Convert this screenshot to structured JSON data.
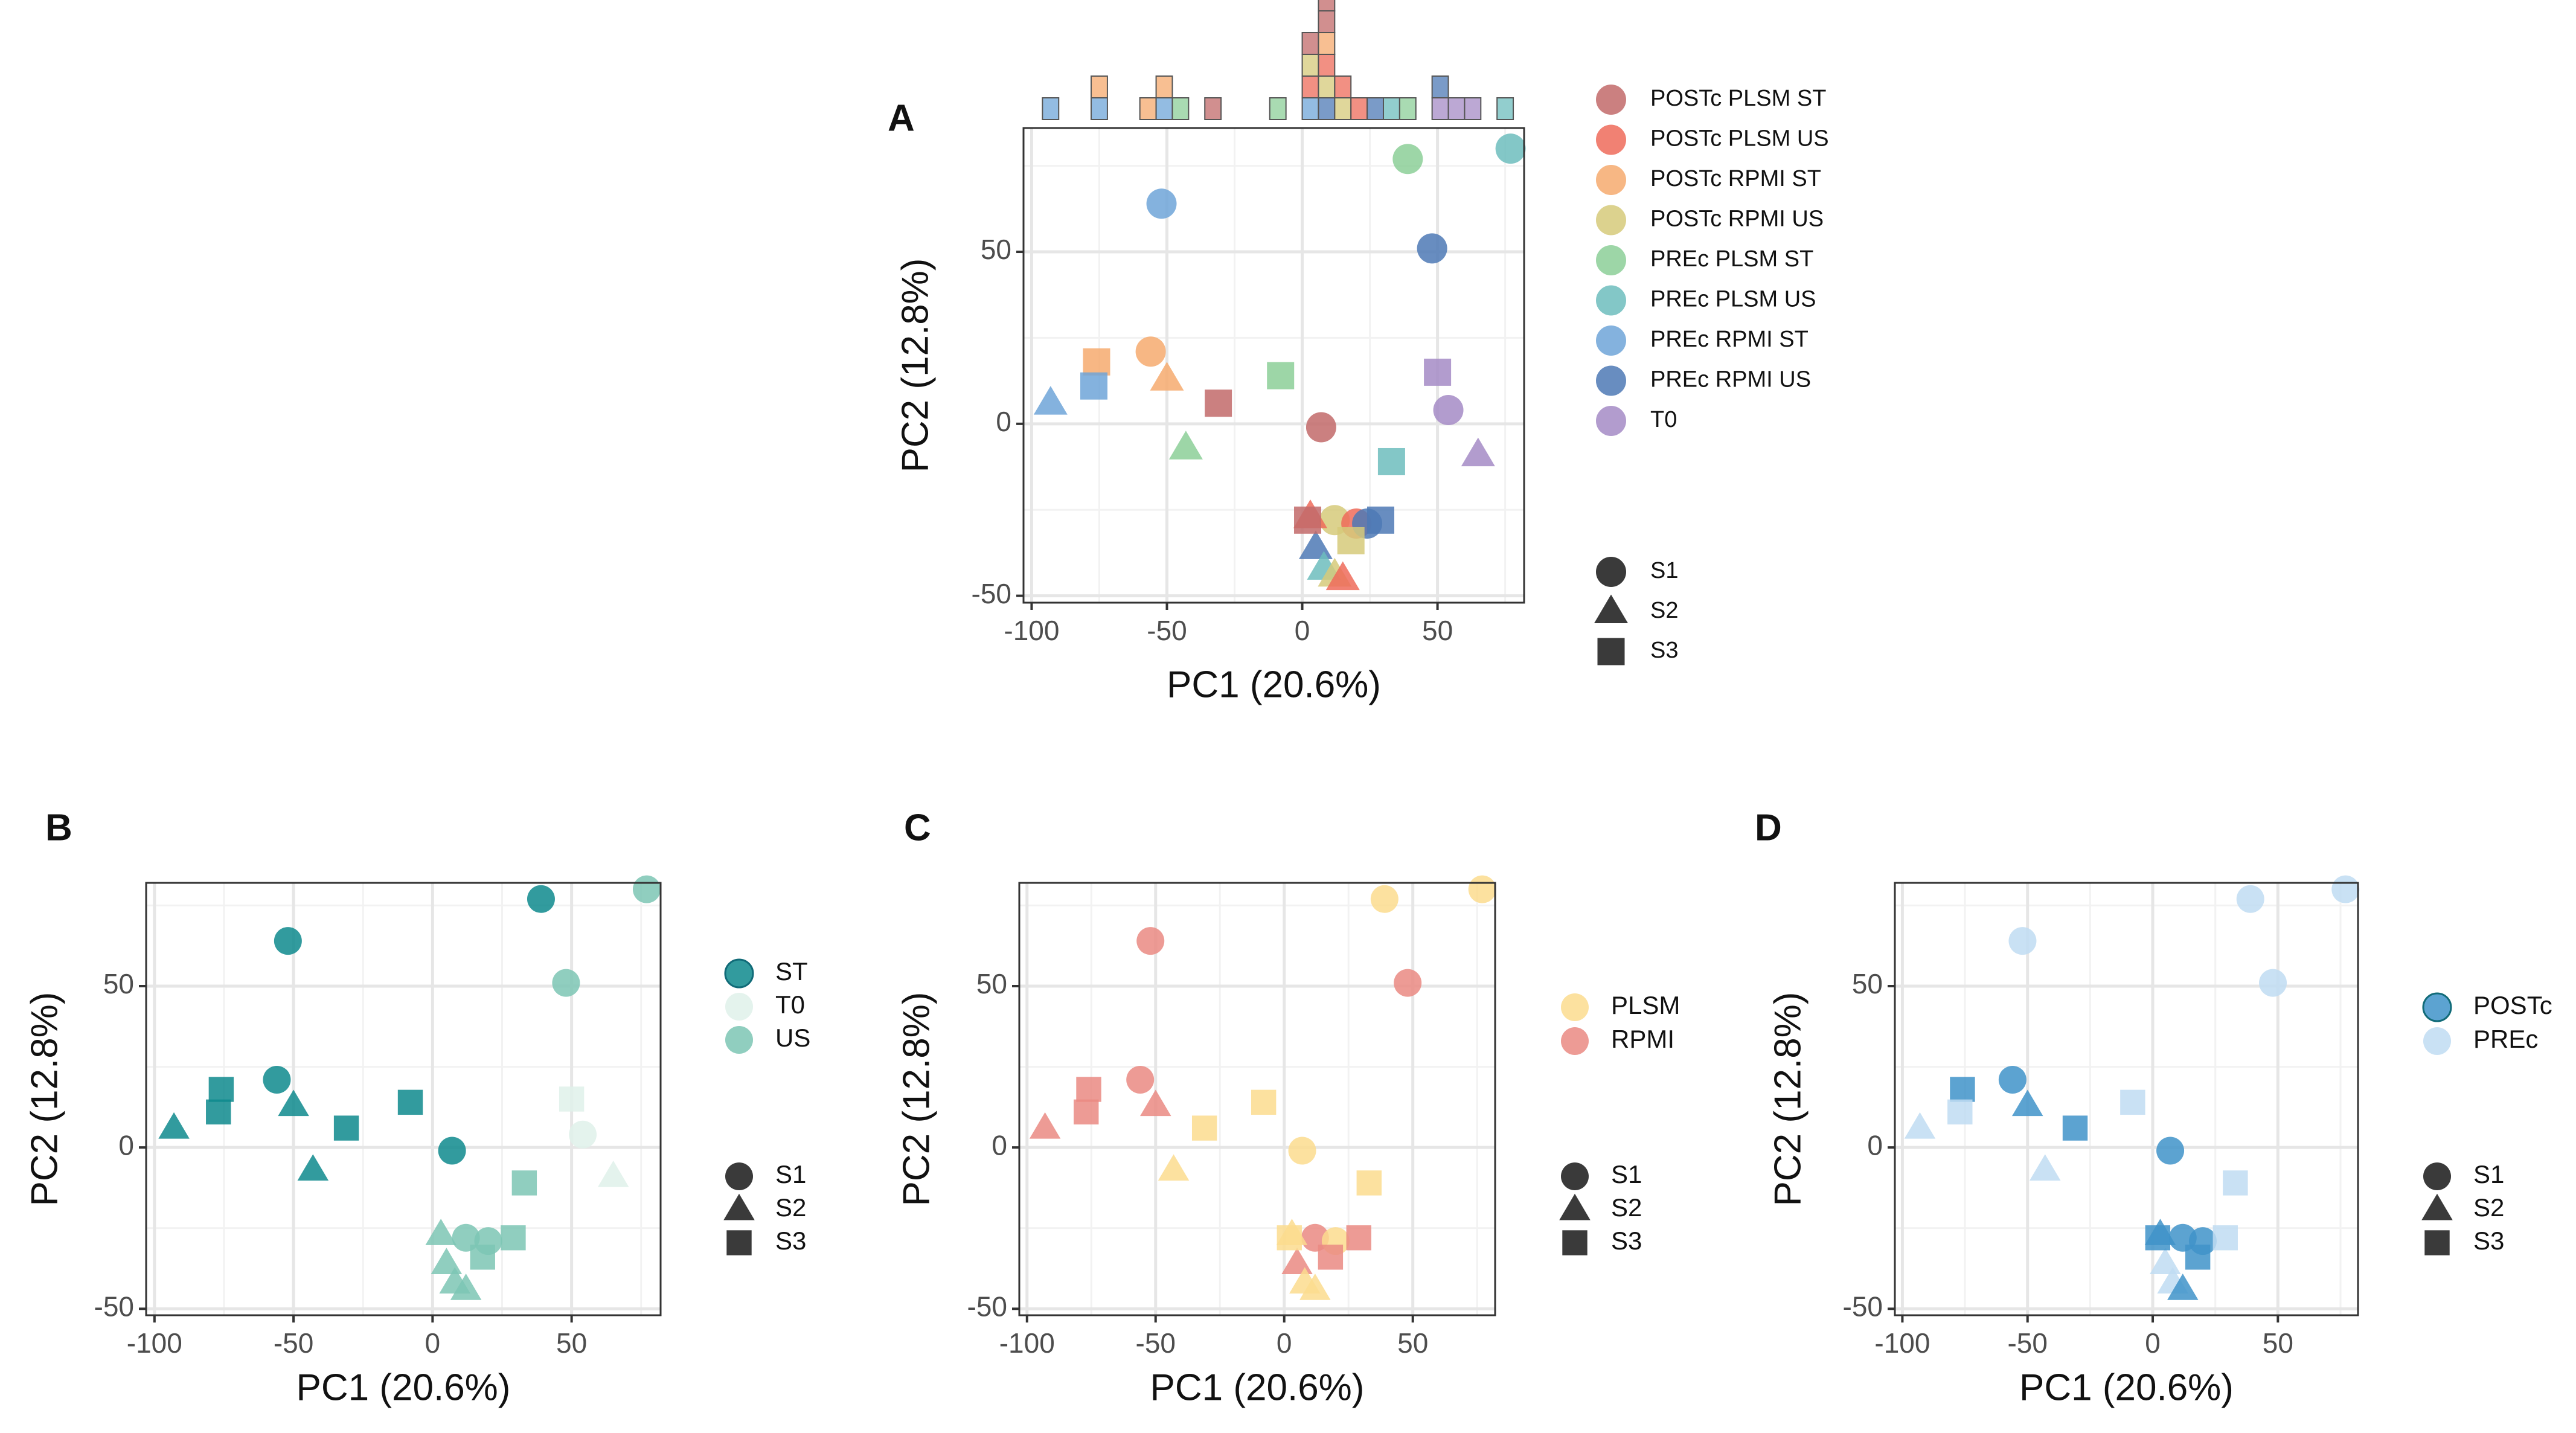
{
  "figure": {
    "colors": {
      "POSTc PLSM ST": "#c26a6a",
      "POSTc PLSM US": "#ee6b5a",
      "POSTc RPMI ST": "#f6aa6e",
      "POSTc RPMI US": "#d6ca7a",
      "PREc PLSM ST": "#8ccf98",
      "PREc PLSM US": "#6dbdbd",
      "PREc RPMI ST": "#6fa5d8",
      "PREc RPMI US": "#4e79b5",
      "T0": "#a58bc6",
      "ST": "#0e8a8d",
      "T0b": "#dff1ea",
      "US": "#7dc6b4",
      "PLSM": "#fbdc8e",
      "RPMI": "#ea8a82",
      "POSTc": "#3f93c9",
      "PREc": "#bfdcf2"
    }
  },
  "chart_data": [
    {
      "panel": "A",
      "type": "scatter",
      "title": "",
      "xlabel": "PC1 (20.6%)",
      "ylabel": "PC2 (12.8%)",
      "xlim": [
        -103,
        82
      ],
      "ylim": [
        -52,
        86
      ],
      "xticks": [
        -100,
        -50,
        0,
        50
      ],
      "yticks": [
        -50,
        0,
        50
      ],
      "grid": true,
      "legend_groups": [
        "POSTc PLSM ST",
        "POSTc PLSM US",
        "POSTc RPMI ST",
        "POSTc RPMI US",
        "PREc PLSM ST",
        "PREc PLSM US",
        "PREc RPMI ST",
        "PREc RPMI US",
        "T0"
      ],
      "shape_legend": [
        "S1",
        "S2",
        "S3"
      ],
      "marginal_histogram": {
        "bin_width": 6,
        "bins": [
          {
            "x": -93,
            "groups": [
              "PREc RPMI ST"
            ]
          },
          {
            "x": -75,
            "groups": [
              "PREc RPMI ST",
              "POSTc RPMI ST"
            ]
          },
          {
            "x": -57,
            "groups": [
              "POSTc RPMI ST"
            ]
          },
          {
            "x": -51,
            "groups": [
              "PREc RPMI ST",
              "POSTc RPMI ST"
            ]
          },
          {
            "x": -45,
            "groups": [
              "PREc PLSM ST"
            ]
          },
          {
            "x": -33,
            "groups": [
              "POSTc PLSM ST"
            ]
          },
          {
            "x": -9,
            "groups": [
              "PREc PLSM ST"
            ]
          },
          {
            "x": 3,
            "groups": [
              "PREc RPMI ST",
              "POSTc PLSM US",
              "POSTc RPMI US",
              "POSTc PLSM ST"
            ]
          },
          {
            "x": 9,
            "groups": [
              "PREc RPMI US",
              "POSTc RPMI US",
              "POSTc PLSM US",
              "POSTc RPMI ST",
              "POSTc PLSM ST",
              "POSTc PLSM ST"
            ]
          },
          {
            "x": 15,
            "groups": [
              "POSTc RPMI US",
              "POSTc PLSM US"
            ]
          },
          {
            "x": 21,
            "groups": [
              "POSTc PLSM US"
            ]
          },
          {
            "x": 27,
            "groups": [
              "PREc RPMI US"
            ]
          },
          {
            "x": 33,
            "groups": [
              "PREc PLSM US"
            ]
          },
          {
            "x": 39,
            "groups": [
              "PREc PLSM ST"
            ]
          },
          {
            "x": 51,
            "groups": [
              "T0",
              "PREc RPMI US"
            ]
          },
          {
            "x": 57,
            "groups": [
              "T0"
            ]
          },
          {
            "x": 63,
            "groups": [
              "T0"
            ]
          },
          {
            "x": 75,
            "groups": [
              "PREc PLSM US"
            ]
          }
        ]
      },
      "points": [
        {
          "x": -52,
          "y": 64,
          "group": "PREc RPMI ST",
          "shape": "S1"
        },
        {
          "x": 39,
          "y": 77,
          "group": "PREc PLSM ST",
          "shape": "S1"
        },
        {
          "x": 77,
          "y": 80,
          "group": "PREc PLSM US",
          "shape": "S1"
        },
        {
          "x": 48,
          "y": 51,
          "group": "PREc RPMI US",
          "shape": "S1"
        },
        {
          "x": -56,
          "y": 21,
          "group": "POSTc RPMI ST",
          "shape": "S1"
        },
        {
          "x": 7,
          "y": -1,
          "group": "POSTc PLSM ST",
          "shape": "S1"
        },
        {
          "x": 54,
          "y": 4,
          "group": "T0",
          "shape": "S1"
        },
        {
          "x": 12,
          "y": -28,
          "group": "POSTc RPMI US",
          "shape": "S1"
        },
        {
          "x": 20,
          "y": -29,
          "group": "POSTc PLSM US",
          "shape": "S1"
        },
        {
          "x": 24,
          "y": -29,
          "group": "PREc RPMI US",
          "shape": "S1"
        },
        {
          "x": -93,
          "y": 6,
          "group": "PREc RPMI ST",
          "shape": "S2"
        },
        {
          "x": -50,
          "y": 13,
          "group": "POSTc RPMI ST",
          "shape": "S2"
        },
        {
          "x": -43,
          "y": -7,
          "group": "PREc PLSM ST",
          "shape": "S2"
        },
        {
          "x": 65,
          "y": -9,
          "group": "T0",
          "shape": "S2"
        },
        {
          "x": 3,
          "y": -27,
          "group": "POSTc PLSM US",
          "shape": "S2"
        },
        {
          "x": 5,
          "y": -36,
          "group": "PREc RPMI US",
          "shape": "S2"
        },
        {
          "x": 8,
          "y": -42,
          "group": "PREc PLSM US",
          "shape": "S2"
        },
        {
          "x": 12,
          "y": -44,
          "group": "POSTc RPMI US",
          "shape": "S2"
        },
        {
          "x": 15,
          "y": -45,
          "group": "POSTc PLSM US",
          "shape": "S2"
        },
        {
          "x": -76,
          "y": 18,
          "group": "POSTc RPMI ST",
          "shape": "S3"
        },
        {
          "x": -77,
          "y": 11,
          "group": "PREc RPMI ST",
          "shape": "S3"
        },
        {
          "x": -31,
          "y": 6,
          "group": "POSTc PLSM ST",
          "shape": "S3"
        },
        {
          "x": -8,
          "y": 14,
          "group": "PREc PLSM ST",
          "shape": "S3"
        },
        {
          "x": 50,
          "y": 15,
          "group": "T0",
          "shape": "S3"
        },
        {
          "x": 33,
          "y": -11,
          "group": "PREc PLSM US",
          "shape": "S3"
        },
        {
          "x": 2,
          "y": -28,
          "group": "POSTc PLSM ST",
          "shape": "S3"
        },
        {
          "x": 18,
          "y": -34,
          "group": "POSTc RPMI US",
          "shape": "S3"
        },
        {
          "x": 29,
          "y": -28,
          "group": "PREc RPMI US",
          "shape": "S3"
        }
      ]
    },
    {
      "panel": "B",
      "type": "scatter",
      "xlabel": "PC1 (20.6%)",
      "ylabel": "PC2 (12.8%)",
      "xlim": [
        -103,
        82
      ],
      "ylim": [
        -52,
        82
      ],
      "xticks": [
        -100,
        -50,
        0,
        50
      ],
      "yticks": [
        -50,
        0,
        50
      ],
      "grid": true,
      "legend_groups": [
        {
          "label": "ST",
          "color_key": "ST"
        },
        {
          "label": "T0",
          "color_key": "T0b"
        },
        {
          "label": "US",
          "color_key": "US"
        }
      ],
      "shape_legend": [
        "S1",
        "S2",
        "S3"
      ],
      "points": [
        {
          "x": -52,
          "y": 64,
          "group": "ST",
          "shape": "S1"
        },
        {
          "x": 39,
          "y": 77,
          "group": "ST",
          "shape": "S1"
        },
        {
          "x": 77,
          "y": 80,
          "group": "US",
          "shape": "S1"
        },
        {
          "x": 48,
          "y": 51,
          "group": "US",
          "shape": "S1"
        },
        {
          "x": -56,
          "y": 21,
          "group": "ST",
          "shape": "S1"
        },
        {
          "x": 7,
          "y": -1,
          "group": "ST",
          "shape": "S1"
        },
        {
          "x": 54,
          "y": 4,
          "group": "T0b",
          "shape": "S1"
        },
        {
          "x": 12,
          "y": -28,
          "group": "US",
          "shape": "S1"
        },
        {
          "x": 20,
          "y": -29,
          "group": "US",
          "shape": "S1"
        },
        {
          "x": -93,
          "y": 6,
          "group": "ST",
          "shape": "S2"
        },
        {
          "x": -50,
          "y": 13,
          "group": "ST",
          "shape": "S2"
        },
        {
          "x": -43,
          "y": -7,
          "group": "ST",
          "shape": "S2"
        },
        {
          "x": 65,
          "y": -9,
          "group": "T0b",
          "shape": "S2"
        },
        {
          "x": 3,
          "y": -27,
          "group": "US",
          "shape": "S2"
        },
        {
          "x": 5,
          "y": -36,
          "group": "US",
          "shape": "S2"
        },
        {
          "x": 8,
          "y": -42,
          "group": "US",
          "shape": "S2"
        },
        {
          "x": 12,
          "y": -44,
          "group": "US",
          "shape": "S2"
        },
        {
          "x": -76,
          "y": 18,
          "group": "ST",
          "shape": "S3"
        },
        {
          "x": -77,
          "y": 11,
          "group": "ST",
          "shape": "S3"
        },
        {
          "x": -31,
          "y": 6,
          "group": "ST",
          "shape": "S3"
        },
        {
          "x": -8,
          "y": 14,
          "group": "ST",
          "shape": "S3"
        },
        {
          "x": 50,
          "y": 15,
          "group": "T0b",
          "shape": "S3"
        },
        {
          "x": 33,
          "y": -11,
          "group": "US",
          "shape": "S3"
        },
        {
          "x": 18,
          "y": -34,
          "group": "US",
          "shape": "S3"
        },
        {
          "x": 29,
          "y": -28,
          "group": "US",
          "shape": "S3"
        }
      ]
    },
    {
      "panel": "C",
      "type": "scatter",
      "xlabel": "PC1 (20.6%)",
      "ylabel": "PC2 (12.8%)",
      "xlim": [
        -103,
        82
      ],
      "ylim": [
        -52,
        82
      ],
      "xticks": [
        -100,
        -50,
        0,
        50
      ],
      "yticks": [
        -50,
        0,
        50
      ],
      "grid": true,
      "legend_groups": [
        {
          "label": "PLSM",
          "color_key": "PLSM"
        },
        {
          "label": "RPMI",
          "color_key": "RPMI"
        }
      ],
      "shape_legend": [
        "S1",
        "S2",
        "S3"
      ],
      "points": [
        {
          "x": -52,
          "y": 64,
          "group": "RPMI",
          "shape": "S1"
        },
        {
          "x": 39,
          "y": 77,
          "group": "PLSM",
          "shape": "S1"
        },
        {
          "x": 77,
          "y": 80,
          "group": "PLSM",
          "shape": "S1"
        },
        {
          "x": 48,
          "y": 51,
          "group": "RPMI",
          "shape": "S1"
        },
        {
          "x": -56,
          "y": 21,
          "group": "RPMI",
          "shape": "S1"
        },
        {
          "x": 7,
          "y": -1,
          "group": "PLSM",
          "shape": "S1"
        },
        {
          "x": 12,
          "y": -28,
          "group": "RPMI",
          "shape": "S1"
        },
        {
          "x": 20,
          "y": -29,
          "group": "PLSM",
          "shape": "S1"
        },
        {
          "x": -93,
          "y": 6,
          "group": "RPMI",
          "shape": "S2"
        },
        {
          "x": -50,
          "y": 13,
          "group": "RPMI",
          "shape": "S2"
        },
        {
          "x": -43,
          "y": -7,
          "group": "PLSM",
          "shape": "S2"
        },
        {
          "x": 3,
          "y": -27,
          "group": "PLSM",
          "shape": "S2"
        },
        {
          "x": 5,
          "y": -36,
          "group": "RPMI",
          "shape": "S2"
        },
        {
          "x": 8,
          "y": -42,
          "group": "PLSM",
          "shape": "S2"
        },
        {
          "x": 12,
          "y": -44,
          "group": "PLSM",
          "shape": "S2"
        },
        {
          "x": -76,
          "y": 18,
          "group": "RPMI",
          "shape": "S3"
        },
        {
          "x": -77,
          "y": 11,
          "group": "RPMI",
          "shape": "S3"
        },
        {
          "x": -31,
          "y": 6,
          "group": "PLSM",
          "shape": "S3"
        },
        {
          "x": -8,
          "y": 14,
          "group": "PLSM",
          "shape": "S3"
        },
        {
          "x": 33,
          "y": -11,
          "group": "PLSM",
          "shape": "S3"
        },
        {
          "x": 2,
          "y": -28,
          "group": "PLSM",
          "shape": "S3"
        },
        {
          "x": 18,
          "y": -34,
          "group": "RPMI",
          "shape": "S3"
        },
        {
          "x": 29,
          "y": -28,
          "group": "RPMI",
          "shape": "S3"
        }
      ]
    },
    {
      "panel": "D",
      "type": "scatter",
      "xlabel": "PC1 (20.6%)",
      "ylabel": "PC2 (12.8%)",
      "xlim": [
        -103,
        82
      ],
      "ylim": [
        -52,
        82
      ],
      "xticks": [
        -100,
        -50,
        0,
        50
      ],
      "yticks": [
        -50,
        0,
        50
      ],
      "grid": true,
      "legend_groups": [
        {
          "label": "POSTc",
          "color_key": "POSTc"
        },
        {
          "label": "PREc",
          "color_key": "PREc"
        }
      ],
      "shape_legend": [
        "S1",
        "S2",
        "S3"
      ],
      "points": [
        {
          "x": -52,
          "y": 64,
          "group": "PREc",
          "shape": "S1"
        },
        {
          "x": 39,
          "y": 77,
          "group": "PREc",
          "shape": "S1"
        },
        {
          "x": 77,
          "y": 80,
          "group": "PREc",
          "shape": "S1"
        },
        {
          "x": 48,
          "y": 51,
          "group": "PREc",
          "shape": "S1"
        },
        {
          "x": -56,
          "y": 21,
          "group": "POSTc",
          "shape": "S1"
        },
        {
          "x": 7,
          "y": -1,
          "group": "POSTc",
          "shape": "S1"
        },
        {
          "x": 12,
          "y": -28,
          "group": "POSTc",
          "shape": "S1"
        },
        {
          "x": 20,
          "y": -29,
          "group": "POSTc",
          "shape": "S1"
        },
        {
          "x": -93,
          "y": 6,
          "group": "PREc",
          "shape": "S2"
        },
        {
          "x": -50,
          "y": 13,
          "group": "POSTc",
          "shape": "S2"
        },
        {
          "x": -43,
          "y": -7,
          "group": "PREc",
          "shape": "S2"
        },
        {
          "x": 3,
          "y": -27,
          "group": "POSTc",
          "shape": "S2"
        },
        {
          "x": 5,
          "y": -36,
          "group": "PREc",
          "shape": "S2"
        },
        {
          "x": 8,
          "y": -42,
          "group": "PREc",
          "shape": "S2"
        },
        {
          "x": 12,
          "y": -44,
          "group": "POSTc",
          "shape": "S2"
        },
        {
          "x": -76,
          "y": 18,
          "group": "POSTc",
          "shape": "S3"
        },
        {
          "x": -77,
          "y": 11,
          "group": "PREc",
          "shape": "S3"
        },
        {
          "x": -31,
          "y": 6,
          "group": "POSTc",
          "shape": "S3"
        },
        {
          "x": -8,
          "y": 14,
          "group": "PREc",
          "shape": "S3"
        },
        {
          "x": 33,
          "y": -11,
          "group": "PREc",
          "shape": "S3"
        },
        {
          "x": 2,
          "y": -28,
          "group": "POSTc",
          "shape": "S3"
        },
        {
          "x": 18,
          "y": -34,
          "group": "POSTc",
          "shape": "S3"
        },
        {
          "x": 29,
          "y": -28,
          "group": "PREc",
          "shape": "S3"
        }
      ]
    }
  ]
}
